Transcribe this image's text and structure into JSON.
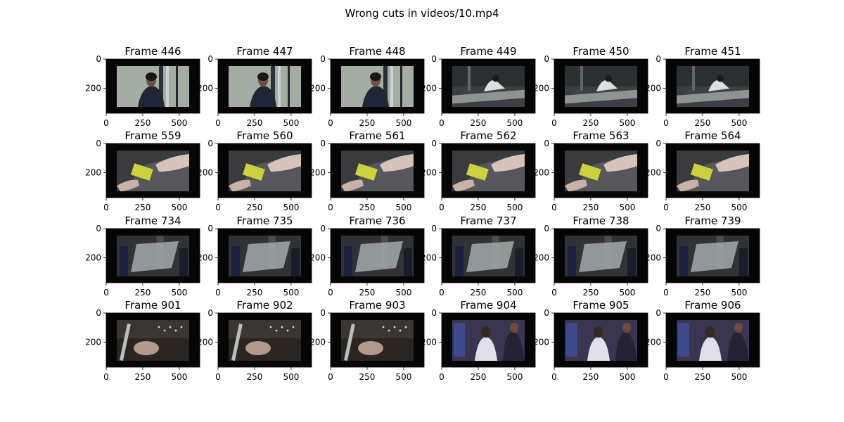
{
  "chart_data": {
    "type": "image_grid",
    "title": "Wrong cuts in videos/10.mp4",
    "x_ticks": [
      0,
      250,
      500
    ],
    "y_ticks": [
      0,
      200
    ],
    "xlim": [
      0,
      640
    ],
    "ylim": [
      370,
      0
    ],
    "image_extent": {
      "x": [
        0,
        640
      ],
      "y": [
        0,
        370
      ]
    },
    "rows": [
      {
        "frames": [
          446,
          447,
          448,
          449,
          450,
          451
        ],
        "scenes": [
          "man-wall",
          "man-wall",
          "man-wall",
          "desk-room",
          "desk-room",
          "desk-room"
        ]
      },
      {
        "frames": [
          559,
          560,
          561,
          562,
          563,
          564
        ],
        "scenes": [
          "hand-card",
          "hand-card",
          "hand-card",
          "hand-card",
          "hand-card",
          "hand-card"
        ]
      },
      {
        "frames": [
          734,
          735,
          736,
          737,
          738,
          739
        ],
        "scenes": [
          "panel-men",
          "panel-men",
          "panel-men",
          "panel-men",
          "panel-men",
          "panel-men"
        ]
      },
      {
        "frames": [
          901,
          902,
          903,
          904,
          905,
          906
        ],
        "scenes": [
          "machine-dark",
          "machine-dark",
          "machine-dark",
          "men-blue",
          "men-blue",
          "men-blue"
        ]
      }
    ],
    "title_prefix": "Frame ",
    "colors": {
      "letterbox": "#050505",
      "man-wall": "#a4ada3",
      "desk-room": "#3c4044",
      "hand-card": "#3a3b3e",
      "panel-men": "#303236",
      "machine-dark": "#2b2522",
      "men-blue": "#3a3550"
    }
  }
}
